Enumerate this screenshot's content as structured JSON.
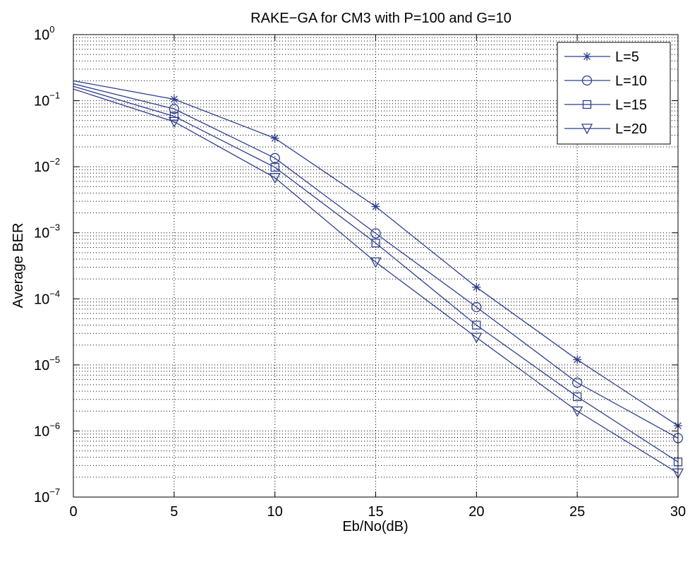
{
  "chart_data": {
    "type": "line",
    "title": "RAKE−GA for CM3 with P=100 and G=10",
    "xlabel": "Eb/No(dB)",
    "ylabel": "Average BER",
    "xlim": [
      0,
      30
    ],
    "ylim": [
      1e-07,
      1
    ],
    "yscale": "log",
    "grid": true,
    "legend_position": "top-right",
    "x": [
      0,
      5,
      10,
      15,
      20,
      25,
      30
    ],
    "x_ticks": [
      "0",
      "5",
      "10",
      "15",
      "20",
      "25",
      "30"
    ],
    "y_ticks": [
      {
        "base": "10",
        "exp": "0"
      },
      {
        "base": "10",
        "exp": "−1"
      },
      {
        "base": "10",
        "exp": "−2"
      },
      {
        "base": "10",
        "exp": "−3"
      },
      {
        "base": "10",
        "exp": "−4"
      },
      {
        "base": "10",
        "exp": "−5"
      },
      {
        "base": "10",
        "exp": "−6"
      },
      {
        "base": "10",
        "exp": "−7"
      }
    ],
    "series": [
      {
        "name": "L=5",
        "marker": "asterisk",
        "values": [
          0.2,
          0.105,
          0.027,
          0.0025,
          0.00015,
          1.2e-05,
          1.2e-06
        ]
      },
      {
        "name": "L=10",
        "marker": "circle",
        "values": [
          0.18,
          0.075,
          0.0135,
          0.00098,
          7.5e-05,
          5.4e-06,
          7.8e-07
        ]
      },
      {
        "name": "L=15",
        "marker": "square",
        "values": [
          0.165,
          0.058,
          0.0098,
          0.0007,
          4e-05,
          3.3e-06,
          3.4e-07
        ]
      },
      {
        "name": "L=20",
        "marker": "triangle-down",
        "values": [
          0.15,
          0.048,
          0.0068,
          0.00036,
          2.6e-05,
          2e-06,
          2.3e-07
        ]
      }
    ],
    "colors": {
      "series": "#2e3e8f",
      "grid": "#000000",
      "axes": "#000000"
    }
  }
}
